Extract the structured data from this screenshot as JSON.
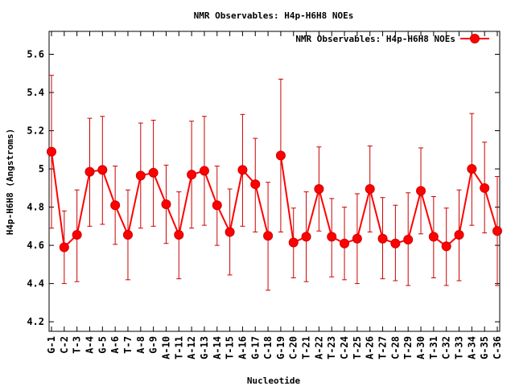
{
  "chart_data": {
    "type": "line",
    "title": "NMR Observables: H4p-H6H8 NOEs",
    "xlabel": "Nucleotide",
    "ylabel": "H4p-H6H8 (Angstroms)",
    "ylim": [
      4.15,
      5.72
    ],
    "yticks": [
      "4.2",
      "4.4",
      "4.6",
      "4.8",
      "5",
      "5.2",
      "5.4",
      "5.6"
    ],
    "ytick_values": [
      4.2,
      4.4,
      4.6,
      4.8,
      5.0,
      5.2,
      5.4,
      5.6
    ],
    "legend_position": "top-right",
    "grid": false,
    "series": [
      {
        "name": "NMR Observables: H4p-H6H8 NOEs",
        "color": "#ff0000",
        "points": [
          {
            "x": 1,
            "label": "G-1",
            "y": 5.09,
            "lo": 4.69,
            "hi": 5.49
          },
          {
            "x": 2,
            "label": "C-2",
            "y": 4.59,
            "lo": 4.4,
            "hi": 4.78
          },
          {
            "x": 3,
            "label": "T-3",
            "y": 4.655,
            "lo": 4.41,
            "hi": 4.89
          },
          {
            "x": 4,
            "label": "A-4",
            "y": 4.985,
            "lo": 4.7,
            "hi": 5.265
          },
          {
            "x": 5,
            "label": "G-5",
            "y": 4.995,
            "lo": 4.71,
            "hi": 5.275
          },
          {
            "x": 6,
            "label": "A-6",
            "y": 4.81,
            "lo": 4.605,
            "hi": 5.015
          },
          {
            "x": 7,
            "label": "T-7",
            "y": 4.655,
            "lo": 4.42,
            "hi": 4.89
          },
          {
            "x": 8,
            "label": "A-8",
            "y": 4.965,
            "lo": 4.69,
            "hi": 5.24
          },
          {
            "x": 9,
            "label": "G-9",
            "y": 4.98,
            "lo": 4.7,
            "hi": 5.255
          },
          {
            "x": 10,
            "label": "A-10",
            "y": 4.815,
            "lo": 4.61,
            "hi": 5.02
          },
          {
            "x": 11,
            "label": "T-11",
            "y": 4.655,
            "lo": 4.425,
            "hi": 4.88
          },
          {
            "x": 12,
            "label": "A-12",
            "y": 4.97,
            "lo": 4.69,
            "hi": 5.25
          },
          {
            "x": 13,
            "label": "G-13",
            "y": 4.99,
            "lo": 4.705,
            "hi": 5.275
          },
          {
            "x": 14,
            "label": "A-14",
            "y": 4.81,
            "lo": 4.6,
            "hi": 5.015
          },
          {
            "x": 15,
            "label": "T-15",
            "y": 4.67,
            "lo": 4.445,
            "hi": 4.895
          },
          {
            "x": 16,
            "label": "A-16",
            "y": 4.995,
            "lo": 4.7,
            "hi": 5.285
          },
          {
            "x": 17,
            "label": "G-17",
            "y": 4.92,
            "lo": 4.67,
            "hi": 5.16
          },
          {
            "x": 18,
            "label": "C-18",
            "y": 4.65,
            "lo": 4.365,
            "hi": 4.93
          },
          {
            "x": 19,
            "label": "G-19",
            "y": 5.07,
            "lo": 4.67,
            "hi": 5.47
          },
          {
            "x": 20,
            "label": "C-20",
            "y": 4.615,
            "lo": 4.43,
            "hi": 4.795
          },
          {
            "x": 21,
            "label": "T-21",
            "y": 4.645,
            "lo": 4.41,
            "hi": 4.88
          },
          {
            "x": 22,
            "label": "A-22",
            "y": 4.895,
            "lo": 4.675,
            "hi": 5.115
          },
          {
            "x": 23,
            "label": "T-23",
            "y": 4.645,
            "lo": 4.435,
            "hi": 4.845
          },
          {
            "x": 24,
            "label": "C-24",
            "y": 4.61,
            "lo": 4.42,
            "hi": 4.8
          },
          {
            "x": 25,
            "label": "T-25",
            "y": 4.635,
            "lo": 4.4,
            "hi": 4.87
          },
          {
            "x": 26,
            "label": "A-26",
            "y": 4.895,
            "lo": 4.67,
            "hi": 5.12
          },
          {
            "x": 27,
            "label": "T-27",
            "y": 4.635,
            "lo": 4.425,
            "hi": 4.85
          },
          {
            "x": 28,
            "label": "C-28",
            "y": 4.61,
            "lo": 4.415,
            "hi": 4.81
          },
          {
            "x": 29,
            "label": "T-29",
            "y": 4.63,
            "lo": 4.39,
            "hi": 4.875
          },
          {
            "x": 30,
            "label": "A-30",
            "y": 4.885,
            "lo": 4.66,
            "hi": 5.11
          },
          {
            "x": 31,
            "label": "T-31",
            "y": 4.645,
            "lo": 4.43,
            "hi": 4.855
          },
          {
            "x": 32,
            "label": "C-32",
            "y": 4.595,
            "lo": 4.39,
            "hi": 4.795
          },
          {
            "x": 33,
            "label": "T-33",
            "y": 4.655,
            "lo": 4.415,
            "hi": 4.89
          },
          {
            "x": 34,
            "label": "A-34",
            "y": 5.0,
            "lo": 4.705,
            "hi": 5.29
          },
          {
            "x": 35,
            "label": "G-35",
            "y": 4.9,
            "lo": 4.665,
            "hi": 5.14
          },
          {
            "x": 36,
            "label": "C-36",
            "y": 4.675,
            "lo": 4.39,
            "hi": 4.96
          }
        ],
        "breaks_after": [
          18
        ]
      }
    ]
  }
}
